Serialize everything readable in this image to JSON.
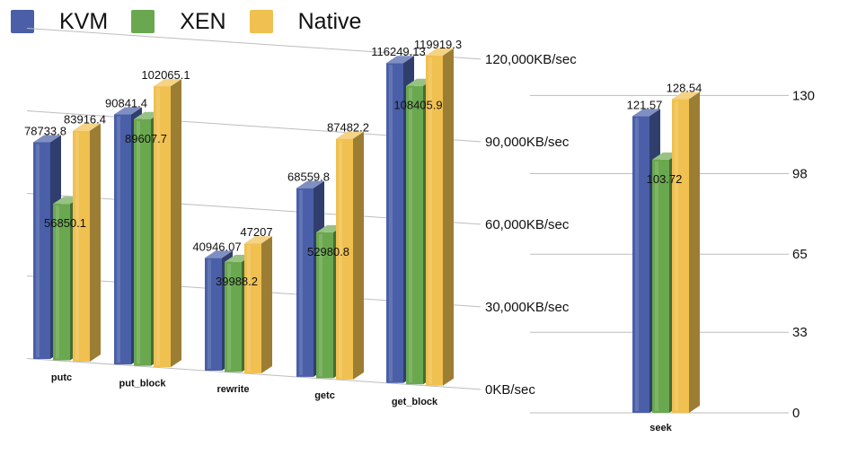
{
  "legend": [
    {
      "name": "KVM",
      "color": "#4a5fa8"
    },
    {
      "name": "XEN",
      "color": "#6aa84f"
    },
    {
      "name": "Native",
      "color": "#f0c050"
    }
  ],
  "chart_data": [
    {
      "type": "bar",
      "categories": [
        "putc",
        "put_block",
        "rewrite",
        "getc",
        "get_block"
      ],
      "series": [
        {
          "name": "KVM",
          "values": [
            78733.8,
            90841.4,
            40946.07,
            68559.8,
            116249.13
          ],
          "labels": [
            "78733.8",
            "90841.4",
            "40946.07",
            "68559.8",
            "116249.13"
          ]
        },
        {
          "name": "XEN",
          "values": [
            56850.1,
            89607.7,
            39988.2,
            52980.8,
            108405.9
          ],
          "labels": [
            "56850.1",
            "89607.7",
            "39988.2",
            "52980.8",
            "108405.9"
          ]
        },
        {
          "name": "Native",
          "values": [
            83916.4,
            102065.1,
            47207,
            87482.2,
            119919.3
          ],
          "labels": [
            "83916.4",
            "102065.1",
            "47207",
            "87482.2",
            "119919.3"
          ]
        }
      ],
      "ylim": [
        0,
        120000
      ],
      "yticks": [
        0,
        30000,
        60000,
        90000,
        120000
      ],
      "ytick_labels": [
        "0KB/sec",
        "30,000KB/sec",
        "60,000KB/sec",
        "90,000KB/sec",
        "120,000KB/sec"
      ],
      "grid": true
    },
    {
      "type": "bar",
      "categories": [
        "seek"
      ],
      "series": [
        {
          "name": "KVM",
          "values": [
            121.57
          ],
          "labels": [
            "121.57"
          ]
        },
        {
          "name": "XEN",
          "values": [
            103.72
          ],
          "labels": [
            "103.72"
          ]
        },
        {
          "name": "Native",
          "values": [
            128.54
          ],
          "labels": [
            "128.54"
          ]
        }
      ],
      "ylim": [
        0,
        130
      ],
      "yticks": [
        0,
        33,
        65,
        98,
        130
      ],
      "ytick_labels": [
        "0",
        "33",
        "65",
        "98",
        "130"
      ],
      "grid": true
    }
  ]
}
